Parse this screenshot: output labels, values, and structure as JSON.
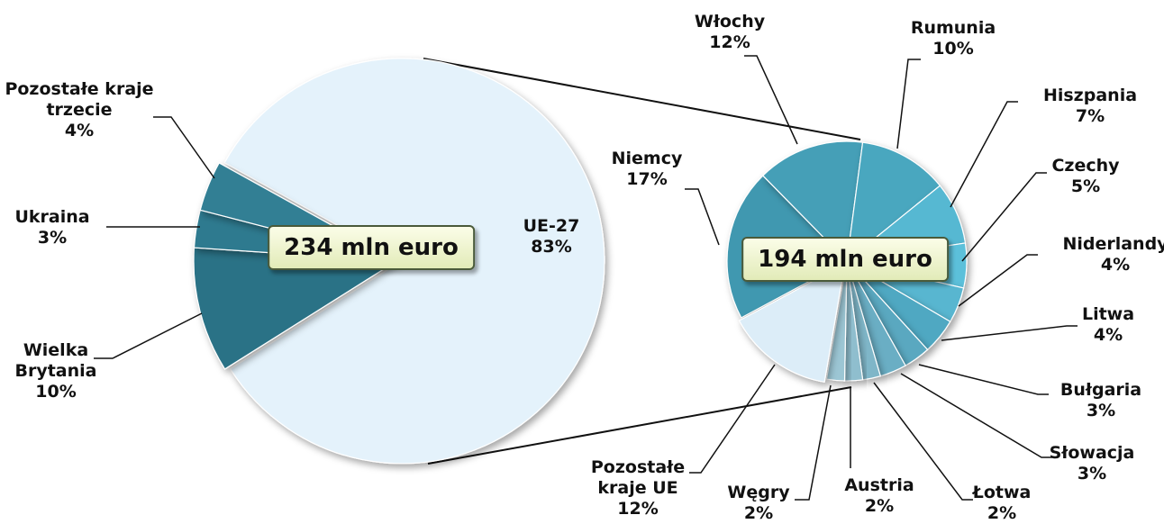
{
  "chart_data": [
    {
      "type": "pie",
      "center_label": "234 mln euro",
      "categories": [
        "UE-27",
        "Wielka Brytania",
        "Ukraina",
        "Pozostałe kraje trzecie"
      ],
      "values": [
        83,
        10,
        3,
        4
      ],
      "value_labels": [
        "83%",
        "10%",
        "3%",
        "4%"
      ],
      "colors": [
        "#e4f2fb",
        "#2b7286",
        "#2f7a8f",
        "#337f94"
      ]
    },
    {
      "type": "pie",
      "center_label": "194 mln euro",
      "categories": [
        "Niemcy",
        "Włochy",
        "Rumunia",
        "Hiszpania",
        "Czechy",
        "Niderlandy",
        "Litwa",
        "Bułgaria",
        "Słowacja",
        "Łotwa",
        "Austria",
        "Węgry",
        "Pozostałe kraje UE"
      ],
      "values": [
        17,
        12,
        10,
        7,
        5,
        4,
        4,
        3,
        3,
        2,
        2,
        2,
        12
      ],
      "value_labels": [
        "17%",
        "12%",
        "10%",
        "7%",
        "5%",
        "4%",
        "4%",
        "3%",
        "3%",
        "2%",
        "2%",
        "2%",
        "12%"
      ],
      "colors": [
        "#3f98b0",
        "#449fb7",
        "#49a7bf",
        "#56b8d2",
        "#5cc0da",
        "#58b6d0",
        "#4fa8c2",
        "#5aa8c0",
        "#6aaec4",
        "#7fb6c8",
        "#8fbece",
        "#9cc6d4",
        "#dcedf8"
      ]
    }
  ]
}
